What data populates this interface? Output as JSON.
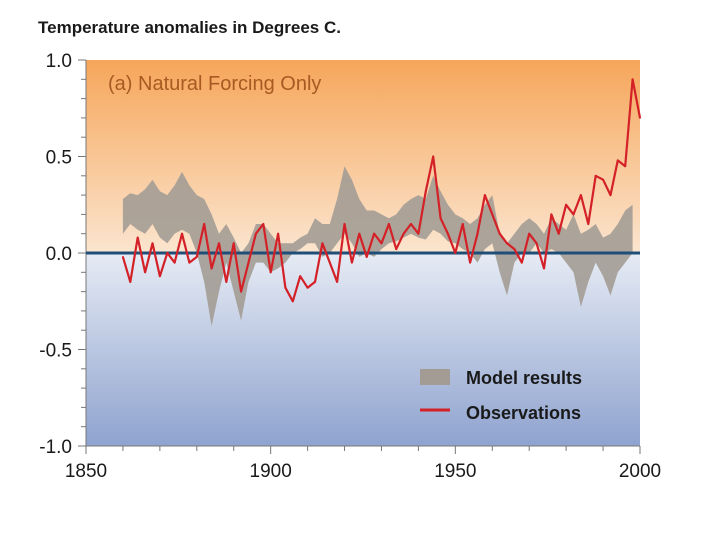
{
  "chart_data": {
    "type": "line",
    "title": "Temperature anomalies in Degrees C.",
    "panel_label": "(a) Natural Forcing Only",
    "xlabel": "",
    "ylabel": "",
    "xlim": [
      1850,
      2000
    ],
    "ylim": [
      -1.0,
      1.0
    ],
    "x_ticks": [
      1850,
      1900,
      1950,
      2000
    ],
    "y_ticks": [
      1.0,
      0.5,
      0.0,
      -0.5,
      -1.0
    ],
    "y_tick_labels": [
      "1.0",
      "0.5",
      "0.0",
      "-0.5",
      "-1.0"
    ],
    "zero_line": 0.0,
    "legend_position": "bottom-right",
    "colors": {
      "observations": "#d42027",
      "model_band": "#a39c95",
      "zero_line": "#1f4e79",
      "bg_top": "#f6a65a",
      "bg_mid": "#fbe5cf",
      "bg_low": "#e6ebf4",
      "bg_bottom": "#8fa3cf"
    },
    "series": [
      {
        "name": "Model results",
        "type": "band",
        "x": [
          1860,
          1862,
          1864,
          1866,
          1868,
          1870,
          1872,
          1874,
          1876,
          1878,
          1880,
          1882,
          1884,
          1886,
          1888,
          1890,
          1892,
          1894,
          1896,
          1898,
          1900,
          1902,
          1904,
          1906,
          1908,
          1910,
          1912,
          1914,
          1916,
          1918,
          1920,
          1922,
          1924,
          1926,
          1928,
          1930,
          1932,
          1934,
          1936,
          1938,
          1940,
          1942,
          1944,
          1946,
          1948,
          1950,
          1952,
          1954,
          1956,
          1958,
          1960,
          1962,
          1964,
          1966,
          1968,
          1970,
          1972,
          1974,
          1976,
          1978,
          1980,
          1982,
          1984,
          1986,
          1988,
          1990,
          1992,
          1994,
          1996,
          1998
        ],
        "upper": [
          0.28,
          0.31,
          0.3,
          0.33,
          0.38,
          0.32,
          0.3,
          0.35,
          0.42,
          0.35,
          0.3,
          0.28,
          0.2,
          0.1,
          0.15,
          0.08,
          0.0,
          0.05,
          0.15,
          0.15,
          0.1,
          0.05,
          0.05,
          0.05,
          0.08,
          0.1,
          0.18,
          0.15,
          0.15,
          0.28,
          0.45,
          0.38,
          0.28,
          0.22,
          0.22,
          0.2,
          0.18,
          0.2,
          0.25,
          0.28,
          0.3,
          0.28,
          0.4,
          0.32,
          0.25,
          0.2,
          0.18,
          0.15,
          0.18,
          0.25,
          0.3,
          0.1,
          0.05,
          0.1,
          0.15,
          0.18,
          0.15,
          0.1,
          0.18,
          0.15,
          0.12,
          0.2,
          0.1,
          0.12,
          0.15,
          0.08,
          0.1,
          0.15,
          0.22,
          0.25
        ],
        "lower": [
          0.1,
          0.15,
          0.12,
          0.1,
          0.15,
          0.08,
          0.05,
          0.1,
          0.12,
          0.1,
          0.0,
          -0.15,
          -0.38,
          -0.2,
          -0.05,
          -0.2,
          -0.35,
          -0.15,
          -0.05,
          -0.05,
          -0.1,
          -0.08,
          -0.05,
          0.0,
          0.02,
          0.05,
          0.05,
          -0.02,
          0.0,
          0.05,
          0.1,
          0.05,
          -0.02,
          0.0,
          -0.02,
          0.02,
          0.05,
          0.06,
          0.08,
          0.1,
          0.08,
          0.07,
          0.12,
          0.1,
          0.06,
          0.05,
          0.02,
          0.0,
          -0.05,
          0.02,
          0.05,
          -0.1,
          -0.22,
          -0.05,
          0.0,
          0.0,
          0.05,
          0.0,
          0.02,
          0.0,
          -0.05,
          -0.1,
          -0.28,
          -0.15,
          -0.05,
          -0.12,
          -0.22,
          -0.1,
          -0.05,
          0.0
        ]
      },
      {
        "name": "Observations",
        "type": "line",
        "x": [
          1860,
          1862,
          1864,
          1866,
          1868,
          1870,
          1872,
          1874,
          1876,
          1878,
          1880,
          1882,
          1884,
          1886,
          1888,
          1890,
          1892,
          1894,
          1896,
          1898,
          1900,
          1902,
          1904,
          1906,
          1908,
          1910,
          1912,
          1914,
          1916,
          1918,
          1920,
          1922,
          1924,
          1926,
          1928,
          1930,
          1932,
          1934,
          1936,
          1938,
          1940,
          1942,
          1944,
          1946,
          1948,
          1950,
          1952,
          1954,
          1956,
          1958,
          1960,
          1962,
          1964,
          1966,
          1968,
          1970,
          1972,
          1974,
          1976,
          1978,
          1980,
          1982,
          1984,
          1986,
          1988,
          1990,
          1992,
          1994,
          1996,
          1998,
          2000
        ],
        "values": [
          -0.02,
          -0.15,
          0.08,
          -0.1,
          0.05,
          -0.12,
          0.0,
          -0.05,
          0.1,
          -0.05,
          -0.02,
          0.15,
          -0.08,
          0.05,
          -0.15,
          0.05,
          -0.2,
          -0.05,
          0.1,
          0.15,
          -0.1,
          0.1,
          -0.18,
          -0.25,
          -0.12,
          -0.18,
          -0.15,
          0.05,
          -0.05,
          -0.15,
          0.15,
          -0.05,
          0.1,
          -0.02,
          0.1,
          0.05,
          0.15,
          0.02,
          0.1,
          0.15,
          0.1,
          0.32,
          0.5,
          0.18,
          0.1,
          0.0,
          0.15,
          -0.05,
          0.1,
          0.3,
          0.2,
          0.1,
          0.05,
          0.02,
          -0.05,
          0.1,
          0.05,
          -0.08,
          0.2,
          0.1,
          0.25,
          0.2,
          0.3,
          0.15,
          0.4,
          0.38,
          0.3,
          0.48,
          0.45,
          0.9,
          0.7
        ]
      }
    ]
  }
}
